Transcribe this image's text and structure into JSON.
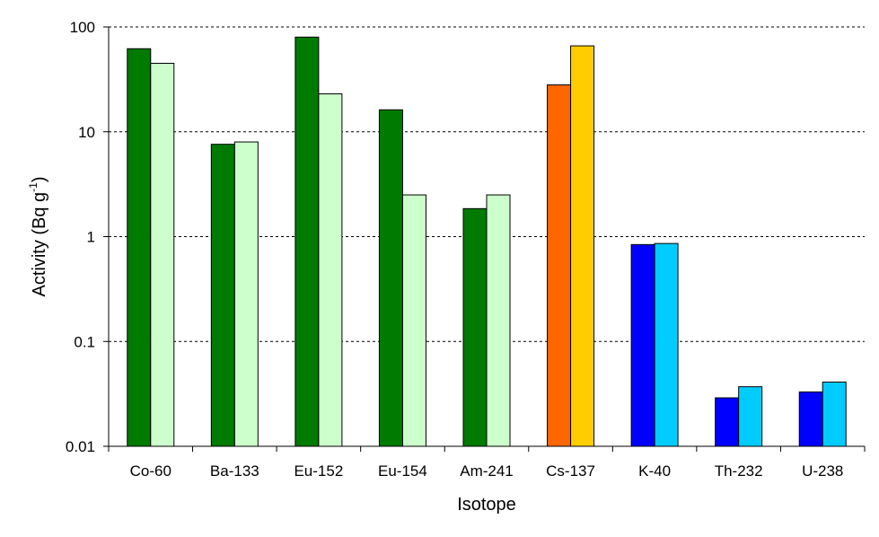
{
  "chart_data": {
    "type": "bar",
    "title": "",
    "xlabel": "Isotope",
    "ylabel": {
      "main": "Activity (Bq g",
      "superscript": "-1",
      "close": ")"
    },
    "yscale": "log",
    "ylim": [
      0.01,
      100
    ],
    "yticks": [
      {
        "value": 100,
        "label": "100"
      },
      {
        "value": 10,
        "label": "10"
      },
      {
        "value": 1,
        "label": "1"
      },
      {
        "value": 0.1,
        "label": "0.1"
      },
      {
        "value": 0.01,
        "label": "0.01"
      }
    ],
    "grid": "horizontal dashed",
    "legend": "none",
    "categories": [
      "Co-60",
      "Ba-133",
      "Eu-152",
      "Eu-154",
      "Am-241",
      "Cs-137",
      "K-40",
      "Th-232",
      "U-238"
    ],
    "series": [
      {
        "values": [
          62,
          7.6,
          80,
          16.2,
          1.85,
          28,
          0.84,
          0.029,
          0.033
        ],
        "colors": [
          "#007a00",
          "#007a00",
          "#007a00",
          "#007a00",
          "#007a00",
          "#ff6600",
          "#0000ff",
          "#0000ff",
          "#0000ff"
        ]
      },
      {
        "values": [
          45,
          8,
          23,
          2.5,
          2.5,
          66,
          0.86,
          0.037,
          0.041
        ],
        "colors": [
          "#ccffcc",
          "#ccffcc",
          "#ccffcc",
          "#ccffcc",
          "#ccffcc",
          "#ffcc00",
          "#00ccff",
          "#00ccff",
          "#00ccff"
        ]
      }
    ]
  }
}
